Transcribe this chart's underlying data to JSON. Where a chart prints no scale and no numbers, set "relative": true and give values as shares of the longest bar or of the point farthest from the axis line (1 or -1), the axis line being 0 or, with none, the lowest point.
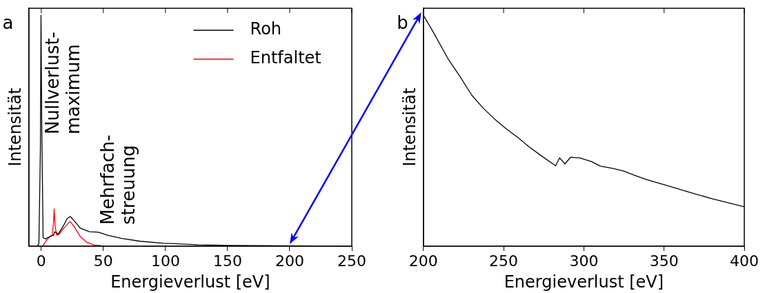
{
  "chart_data": [
    {
      "type": "line",
      "relative": true,
      "xlabel": "Energieverlust [eV]",
      "ylabel": "Intensität",
      "xlim": [
        -10,
        250
      ],
      "xticks": [
        0,
        50,
        100,
        150,
        200,
        250
      ],
      "legend": "top right",
      "annotations": [
        "a",
        "Nullverlust-\nmaximum",
        "Mehrfach-\nstreuung"
      ],
      "series": [
        {
          "name": "Roh",
          "color": "#000000",
          "x": [
            -3.2,
            -1.9,
            -0.7,
            -0.2,
            0.4,
            1.5,
            3.4,
            7.1,
            9.9,
            10.8,
            13.6,
            17.3,
            21.0,
            23.3,
            25.7,
            31.3,
            38.7,
            46.1,
            53.6,
            64.7,
            79.6,
            98.2,
            126,
            154,
            200,
            249
          ],
          "values": [
            0,
            0.01,
            0.42,
            1.0,
            0.52,
            0.036,
            0.031,
            0.042,
            0.047,
            0.062,
            0.052,
            0.083,
            0.12,
            0.128,
            0.115,
            0.078,
            0.0625,
            0.06,
            0.047,
            0.033,
            0.021,
            0.0125,
            0.006,
            0.003,
            0.001,
            0
          ]
        },
        {
          "name": "Entfaltet",
          "color": "#ff0000",
          "x": [
            1.1,
            4.3,
            7.1,
            8.9,
            9.9,
            10.4,
            11.2,
            12.6,
            14.5,
            18.2,
            23.3,
            26.6,
            31.3,
            36.8,
            42.4,
            48
          ],
          "values": [
            0,
            0.026,
            0.042,
            0.047,
            0.104,
            0.161,
            0.083,
            0.047,
            0.052,
            0.078,
            0.107,
            0.083,
            0.042,
            0.016,
            0.005,
            0.002
          ]
        }
      ]
    },
    {
      "type": "line",
      "relative": true,
      "xlabel": "Energieverlust [eV]",
      "ylabel": "Intensität",
      "xlim": [
        200,
        400
      ],
      "xticks": [
        200,
        250,
        300,
        350,
        400
      ],
      "annotations": [
        "b"
      ],
      "series": [
        {
          "color": "#000000",
          "x": [
            200,
            205.7,
            215.8,
            222.9,
            230.1,
            237.3,
            244.4,
            251.6,
            258.8,
            266,
            273.1,
            282.4,
            284.9,
            288.2,
            291.8,
            297.5,
            304.7,
            310.4,
            317.6,
            324.7,
            331.9,
            339.1,
            352,
            366.3,
            380.6,
            400
          ],
          "values": [
            1.0,
            0.932,
            0.806,
            0.733,
            0.654,
            0.597,
            0.55,
            0.508,
            0.471,
            0.429,
            0.393,
            0.348,
            0.382,
            0.356,
            0.385,
            0.382,
            0.366,
            0.346,
            0.337,
            0.325,
            0.306,
            0.288,
            0.262,
            0.232,
            0.204,
            0.17
          ]
        }
      ]
    }
  ]
}
